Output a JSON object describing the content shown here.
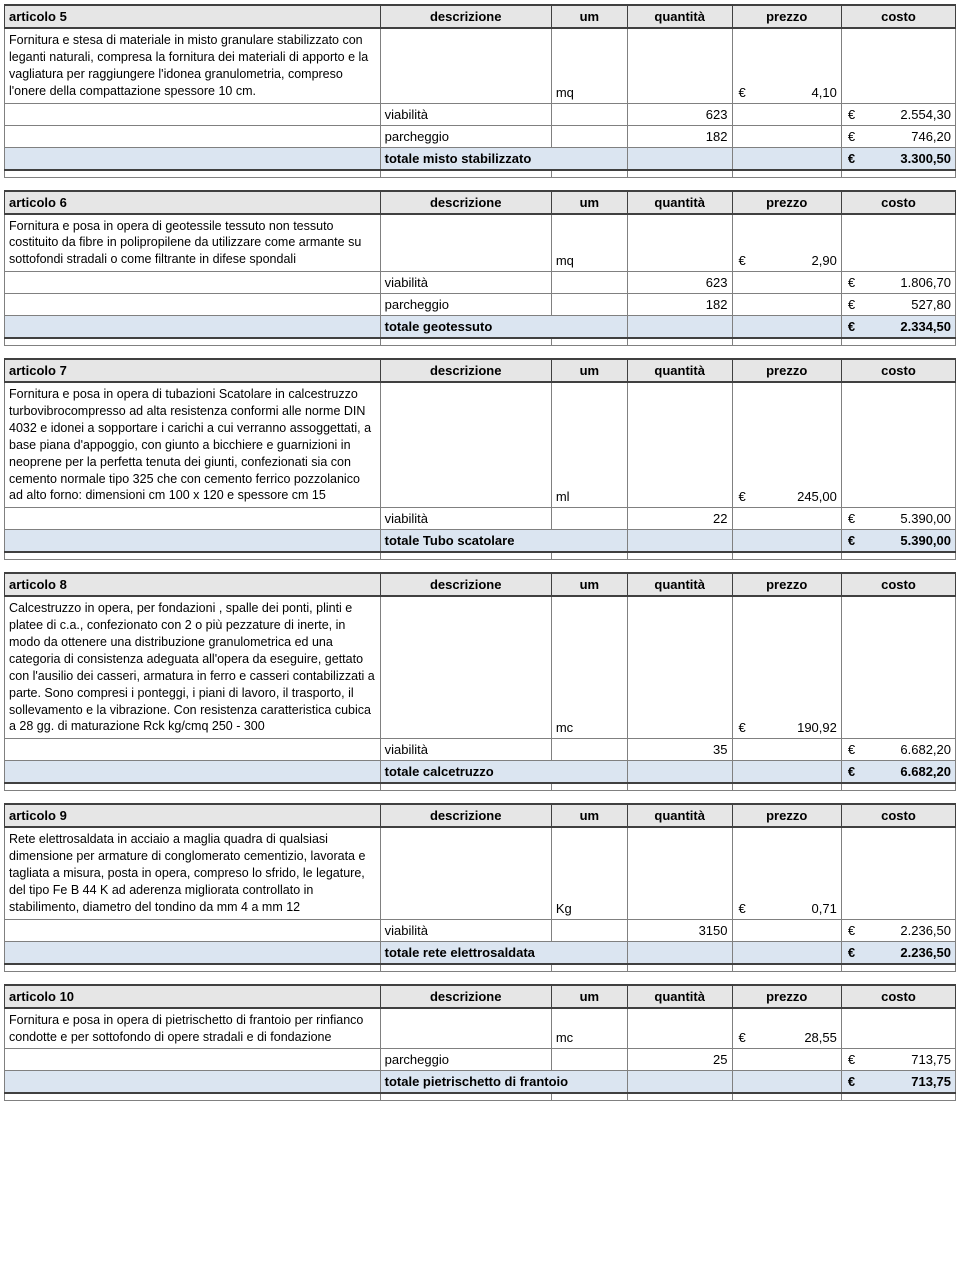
{
  "columns": {
    "descrizione": "descrizione",
    "um": "um",
    "quantita": "quantità",
    "prezzo": "prezzo",
    "costo": "costo"
  },
  "currency": "€",
  "articles": [
    {
      "id": "articolo 5",
      "description": "Fornitura e stesa di materiale in misto granulare stabilizzato con leganti naturali, compresa la fornitura dei materiali di apporto e la vagliatura per raggiungere l'idonea granulometria, compreso l'onere della compattazione spessore 10 cm.",
      "um": "mq",
      "price": "4,10",
      "lines": [
        {
          "label": "viabilità",
          "qty": "623",
          "cost": "2.554,30"
        },
        {
          "label": "parcheggio",
          "qty": "182",
          "cost": "746,20"
        }
      ],
      "total_label": "totale misto stabilizzato",
      "total_cost": "3.300,50"
    },
    {
      "id": "articolo 6",
      "description": "Fornitura e posa in opera di geotessile tessuto non tessuto costituito da fibre in polipropilene da utilizzare come armante su sottofondi stradali o come filtrante in difese spondali",
      "um": "mq",
      "price": "2,90",
      "lines": [
        {
          "label": "viabilità",
          "qty": "623",
          "cost": "1.806,70"
        },
        {
          "label": "parcheggio",
          "qty": "182",
          "cost": "527,80"
        }
      ],
      "total_label": "totale geotessuto",
      "total_cost": "2.334,50"
    },
    {
      "id": "articolo 7",
      "description": "Fornitura e posa in opera di tubazioni Scatolare in calcestruzzo turbovibrocompresso ad alta resistenza conformi alle norme DIN 4032 e idonei a sopportare i carichi a cui verranno assoggettati, a base piana d'appoggio, con giunto a bicchiere e guarnizioni in neoprene per la perfetta tenuta dei giunti, confezionati sia con cemento normale tipo 325 che con cemento ferrico pozzolanico ad alto forno: dimensioni cm 100 x 120  e spessore cm 15",
      "um": "ml",
      "price": "245,00",
      "lines": [
        {
          "label": "viabilità",
          "qty": "22",
          "cost": "5.390,00"
        }
      ],
      "total_label": "totale Tubo scatolare",
      "total_cost": "5.390,00"
    },
    {
      "id": "articolo 8",
      "description": "Calcestruzzo in opera, per fondazioni , spalle dei ponti, plinti e platee di c.a., confezionato con 2 o più pezzature di inerte, in modo da ottenere una distribuzione granulometrica ed una categoria di consistenza adeguata all'opera da eseguire, gettato con l'ausilio dei casseri, armatura in ferro e casseri contabilizzati a parte. Sono compresi i ponteggi, i piani di lavoro, il trasporto, il sollevamento e la vibrazione. Con resistenza caratteristica cubica a 28 gg. di maturazione Rck kg/cmq 250 - 300",
      "um": "mc",
      "price": "190,92",
      "lines": [
        {
          "label": "viabilità",
          "qty": "35",
          "cost": "6.682,20"
        }
      ],
      "total_label": "totale calcetruzzo",
      "total_cost": "6.682,20"
    },
    {
      "id": "articolo 9",
      "description": "Rete elettrosaldata in acciaio a maglia quadra di qualsiasi dimensione per armature di conglomerato cementizio, lavorata e tagliata a misura, posta in opera, compreso lo sfrido, le legature, del tipo Fe B 44 K ad aderenza migliorata controllato in stabilimento, diametro del tondino da mm 4 a mm 12",
      "um": "Kg",
      "price": "0,71",
      "lines": [
        {
          "label": "viabilità",
          "qty": "3150",
          "cost": "2.236,50"
        }
      ],
      "total_label": "totale rete elettrosaldata",
      "total_cost": "2.236,50"
    },
    {
      "id": "articolo 10",
      "description": "Fornitura e posa in opera di pietrischetto di frantoio per rinfianco condotte e per sottofondo di opere stradali e di fondazione",
      "um": "mc",
      "price": "28,55",
      "lines": [
        {
          "label": "parcheggio",
          "qty": "25",
          "cost": "713,75"
        }
      ],
      "total_label": "totale pietrischetto di frantoio",
      "total_cost": "713,75"
    }
  ]
}
